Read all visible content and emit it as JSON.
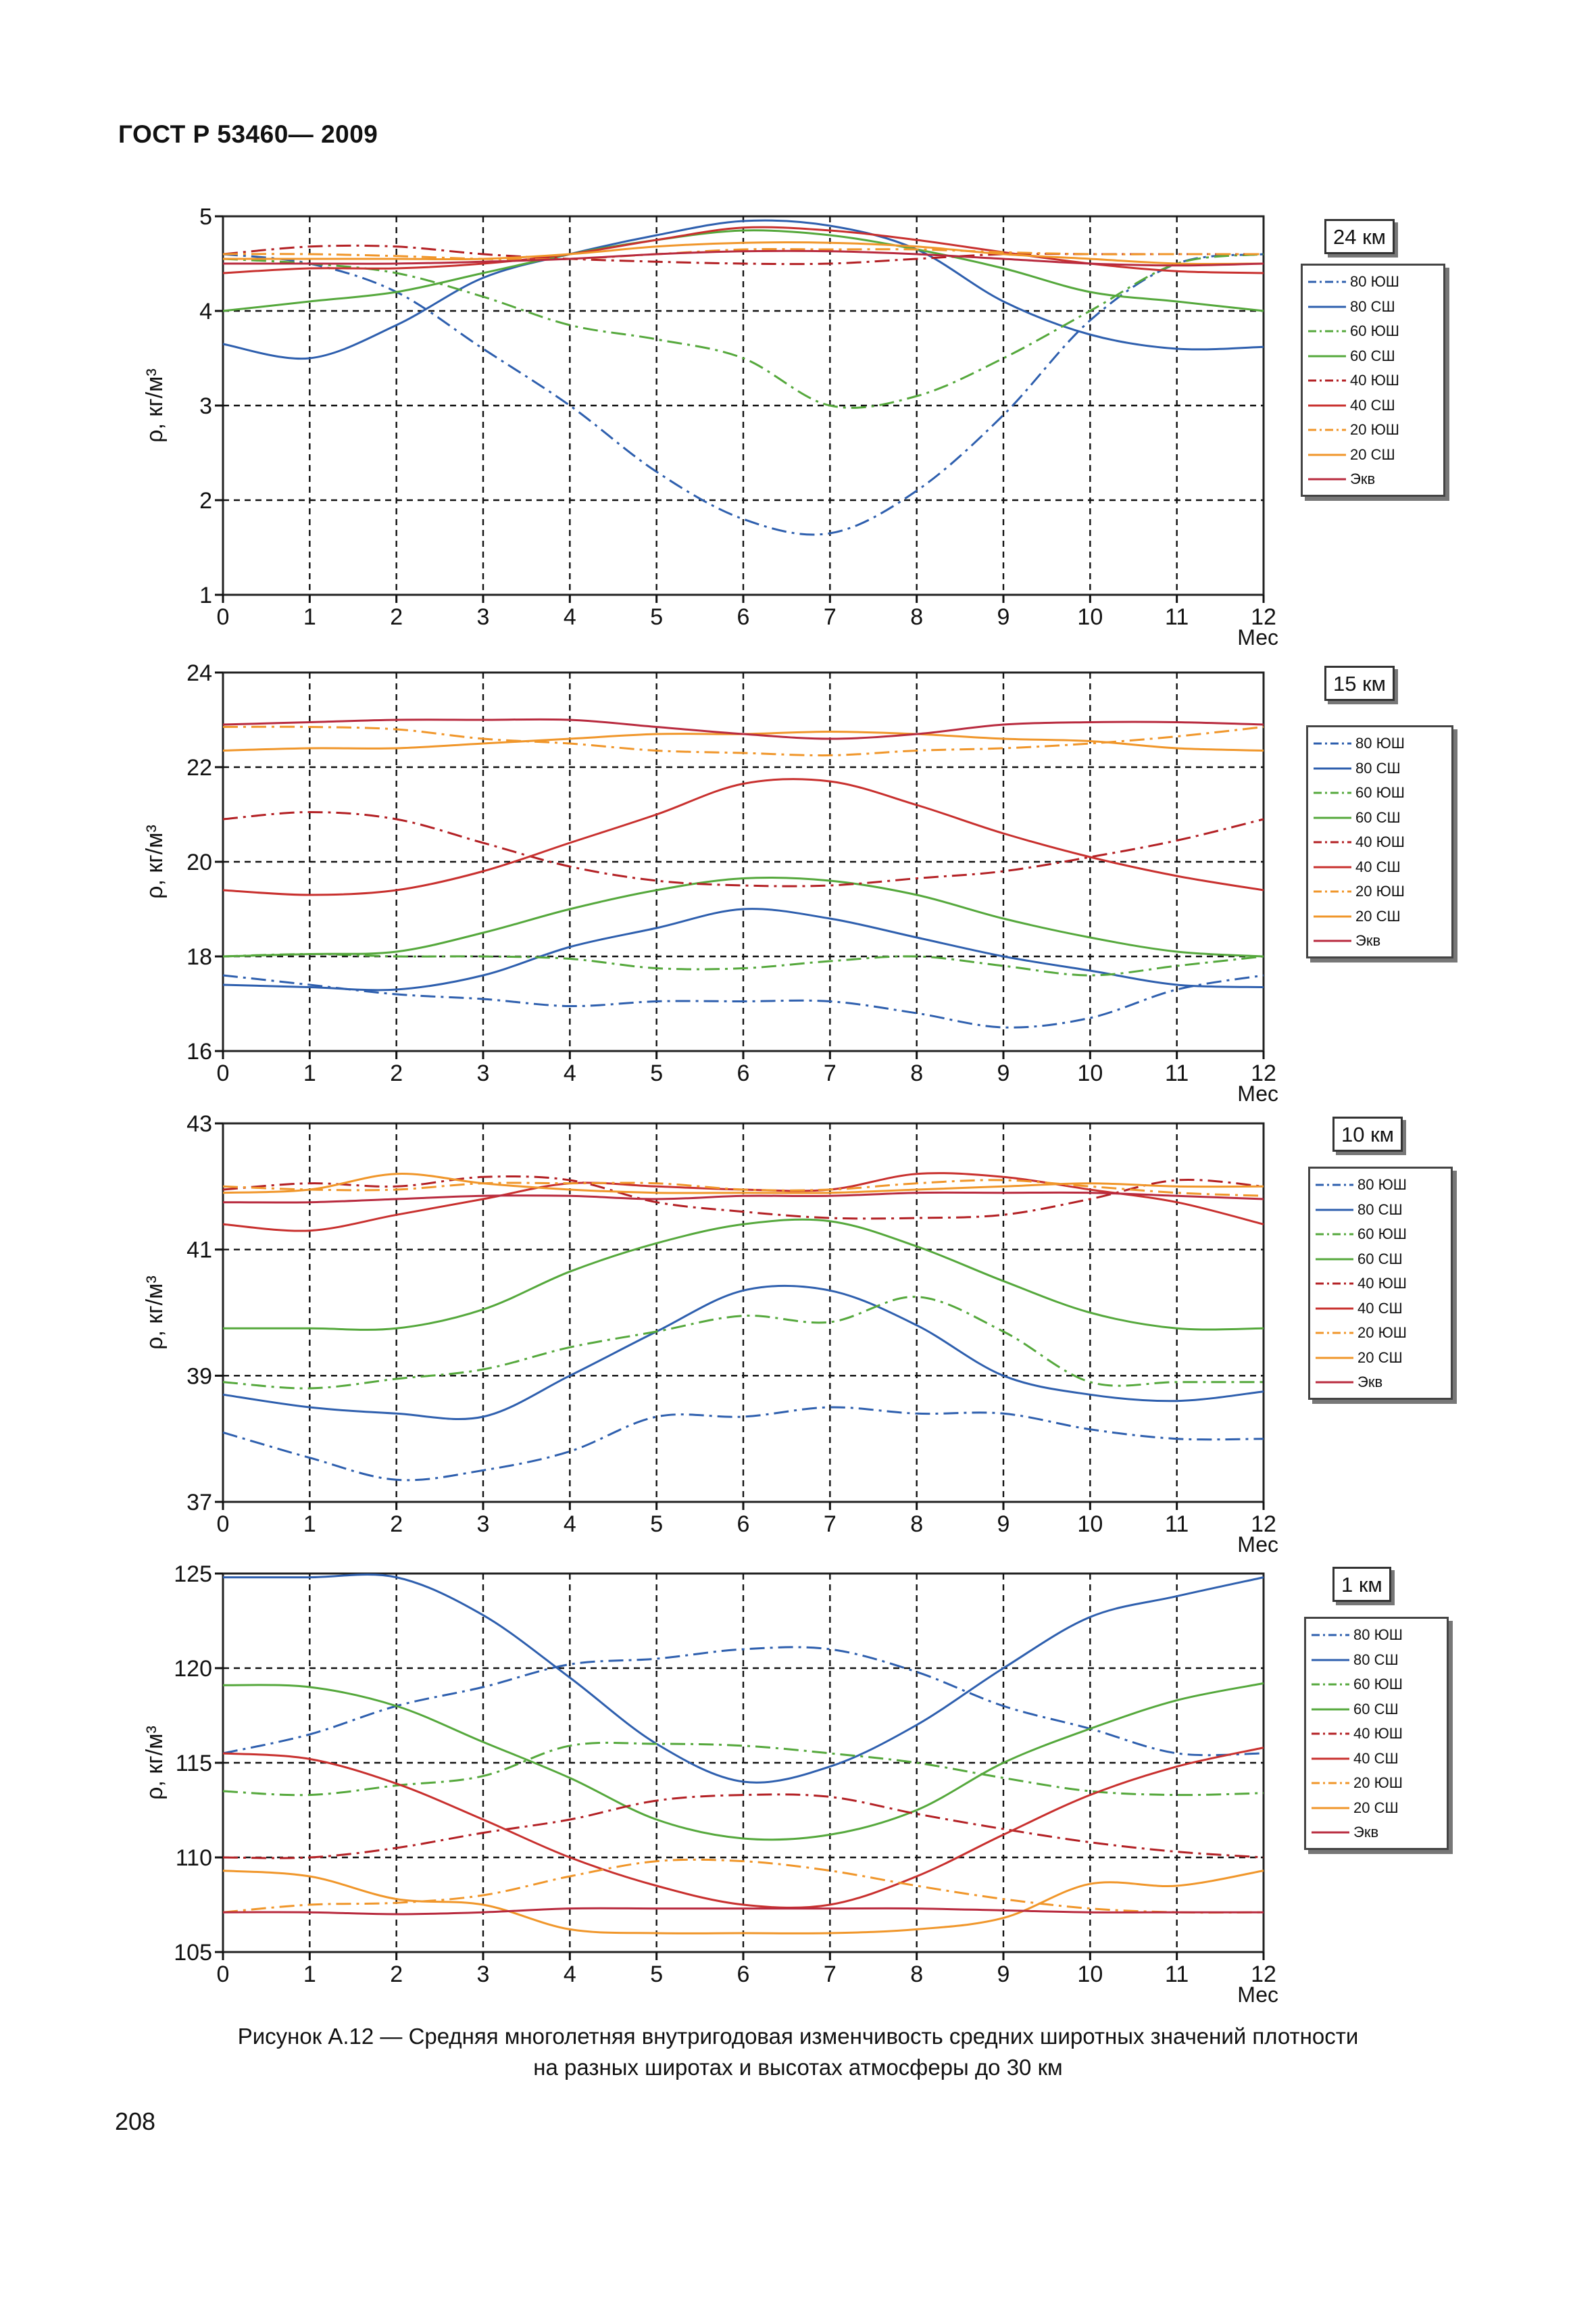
{
  "header": "ГОСТ Р 53460— 2009",
  "caption_line1": "Рисунок  А.12  —  Средняя многолетняя внутригодовая изменчивость средних широтных значений плотности",
  "caption_line2": "на разных широтах и высотах атмосферы до 30 км",
  "page_number": "208",
  "legend_labels": [
    "80 ЮШ",
    "80 СШ",
    "60 ЮШ",
    "60 СШ",
    "40 ЮШ",
    "40 СШ",
    "20 ЮШ",
    "20 СШ",
    "Экв"
  ],
  "series_styles": [
    {
      "color": "#2e5fae",
      "dash": "dashdot"
    },
    {
      "color": "#2e5fae",
      "dash": "solid"
    },
    {
      "color": "#55a83c",
      "dash": "dashdot"
    },
    {
      "color": "#55a83c",
      "dash": "solid"
    },
    {
      "color": "#b32024",
      "dash": "dashdot"
    },
    {
      "color": "#c8302e",
      "dash": "solid"
    },
    {
      "color": "#f0962a",
      "dash": "dashdot"
    },
    {
      "color": "#f0962a",
      "dash": "solid"
    },
    {
      "color": "#b82a3e",
      "dash": "solid"
    }
  ],
  "chart_data": [
    {
      "type": "line",
      "title": "24 км",
      "ylabel": "ρ, кг/м³",
      "xlabel": "Мес",
      "xlim": [
        0,
        12
      ],
      "ylim": [
        1,
        5
      ],
      "yticks": [
        1,
        2,
        3,
        4,
        5
      ],
      "grid": true,
      "legend": "right",
      "x": [
        0,
        1,
        2,
        3,
        4,
        5,
        6,
        7,
        8,
        9,
        10,
        11,
        12
      ],
      "series": [
        {
          "name": "80 ЮШ",
          "values": [
            4.6,
            4.5,
            4.2,
            3.6,
            3.0,
            2.3,
            1.8,
            1.65,
            2.1,
            2.9,
            3.9,
            4.5,
            4.6
          ]
        },
        {
          "name": "80 СШ",
          "values": [
            3.65,
            3.5,
            3.85,
            4.35,
            4.6,
            4.8,
            4.95,
            4.9,
            4.65,
            4.1,
            3.75,
            3.6,
            3.62
          ]
        },
        {
          "name": "60 ЮШ",
          "values": [
            4.55,
            4.5,
            4.4,
            4.15,
            3.85,
            3.7,
            3.5,
            3.0,
            3.1,
            3.5,
            4.0,
            4.5,
            4.6
          ]
        },
        {
          "name": "60 СШ",
          "values": [
            4.0,
            4.1,
            4.2,
            4.4,
            4.6,
            4.75,
            4.85,
            4.8,
            4.65,
            4.45,
            4.2,
            4.1,
            4.0
          ]
        },
        {
          "name": "40 ЮШ",
          "values": [
            4.6,
            4.68,
            4.68,
            4.6,
            4.55,
            4.52,
            4.5,
            4.5,
            4.55,
            4.6,
            4.6,
            4.6,
            4.6
          ]
        },
        {
          "name": "40 СШ",
          "values": [
            4.4,
            4.45,
            4.45,
            4.5,
            4.6,
            4.75,
            4.88,
            4.85,
            4.75,
            4.62,
            4.5,
            4.42,
            4.4
          ]
        },
        {
          "name": "20 ЮШ",
          "values": [
            4.6,
            4.6,
            4.58,
            4.55,
            4.55,
            4.6,
            4.65,
            4.65,
            4.65,
            4.62,
            4.6,
            4.6,
            4.6
          ]
        },
        {
          "name": "20 СШ",
          "values": [
            4.55,
            4.55,
            4.55,
            4.55,
            4.6,
            4.68,
            4.72,
            4.72,
            4.68,
            4.6,
            4.55,
            4.5,
            4.5
          ]
        },
        {
          "name": "Экв",
          "values": [
            4.5,
            4.5,
            4.5,
            4.52,
            4.55,
            4.6,
            4.63,
            4.63,
            4.6,
            4.55,
            4.5,
            4.48,
            4.5
          ]
        }
      ]
    },
    {
      "type": "line",
      "title": "15 км",
      "ylabel": "ρ, кг/м³",
      "xlabel": "Мес",
      "xlim": [
        0,
        12
      ],
      "ylim": [
        16,
        24
      ],
      "yticks": [
        16,
        18,
        20,
        22,
        24
      ],
      "grid": true,
      "legend": "right",
      "x": [
        0,
        1,
        2,
        3,
        4,
        5,
        6,
        7,
        8,
        9,
        10,
        11,
        12
      ],
      "series": [
        {
          "name": "80 ЮШ",
          "values": [
            17.6,
            17.4,
            17.2,
            17.1,
            16.95,
            17.05,
            17.05,
            17.05,
            16.8,
            16.5,
            16.7,
            17.3,
            17.6
          ]
        },
        {
          "name": "80 СШ",
          "values": [
            17.4,
            17.35,
            17.3,
            17.6,
            18.2,
            18.6,
            19.0,
            18.8,
            18.4,
            18.0,
            17.7,
            17.4,
            17.35
          ]
        },
        {
          "name": "60 ЮШ",
          "values": [
            18.0,
            18.05,
            18.0,
            18.0,
            17.95,
            17.75,
            17.75,
            17.9,
            18.0,
            17.8,
            17.6,
            17.8,
            18.0
          ]
        },
        {
          "name": "60 СШ",
          "values": [
            18.0,
            18.05,
            18.1,
            18.5,
            19.0,
            19.4,
            19.65,
            19.6,
            19.3,
            18.8,
            18.4,
            18.1,
            18.0
          ]
        },
        {
          "name": "40 ЮШ",
          "values": [
            20.9,
            21.05,
            20.9,
            20.4,
            19.9,
            19.6,
            19.5,
            19.5,
            19.65,
            19.8,
            20.1,
            20.45,
            20.9
          ]
        },
        {
          "name": "40 СШ",
          "values": [
            19.4,
            19.3,
            19.4,
            19.8,
            20.4,
            21.0,
            21.65,
            21.7,
            21.2,
            20.6,
            20.1,
            19.7,
            19.4
          ]
        },
        {
          "name": "20 ЮШ",
          "values": [
            22.85,
            22.85,
            22.8,
            22.6,
            22.5,
            22.35,
            22.3,
            22.25,
            22.35,
            22.4,
            22.5,
            22.65,
            22.85
          ]
        },
        {
          "name": "20 СШ",
          "values": [
            22.35,
            22.4,
            22.4,
            22.5,
            22.6,
            22.7,
            22.7,
            22.75,
            22.7,
            22.6,
            22.55,
            22.4,
            22.35
          ]
        },
        {
          "name": "Экв",
          "values": [
            22.9,
            22.95,
            23.0,
            23.0,
            23.0,
            22.85,
            22.7,
            22.6,
            22.7,
            22.9,
            22.95,
            22.95,
            22.9
          ]
        }
      ]
    },
    {
      "type": "line",
      "title": "10 км",
      "ylabel": "ρ, кг/м³",
      "xlabel": "Мес",
      "xlim": [
        0,
        12
      ],
      "ylim": [
        37,
        43
      ],
      "yticks": [
        37,
        39,
        41,
        43
      ],
      "grid": true,
      "legend": "right",
      "x": [
        0,
        1,
        2,
        3,
        4,
        5,
        6,
        7,
        8,
        9,
        10,
        11,
        12
      ],
      "series": [
        {
          "name": "80 ЮШ",
          "values": [
            38.1,
            37.7,
            37.35,
            37.5,
            37.8,
            38.35,
            38.35,
            38.5,
            38.4,
            38.4,
            38.15,
            38.0,
            38.0
          ]
        },
        {
          "name": "80 СШ",
          "values": [
            38.7,
            38.5,
            38.4,
            38.35,
            39.0,
            39.7,
            40.35,
            40.35,
            39.8,
            39.0,
            38.7,
            38.6,
            38.75
          ]
        },
        {
          "name": "60 ЮШ",
          "values": [
            38.9,
            38.8,
            38.95,
            39.1,
            39.45,
            39.7,
            39.95,
            39.85,
            40.25,
            39.7,
            38.9,
            38.9,
            38.9
          ]
        },
        {
          "name": "60 СШ",
          "values": [
            39.75,
            39.75,
            39.75,
            40.05,
            40.65,
            41.1,
            41.4,
            41.45,
            41.05,
            40.5,
            40.0,
            39.75,
            39.75
          ]
        },
        {
          "name": "40 ЮШ",
          "values": [
            41.95,
            42.05,
            42.0,
            42.15,
            42.1,
            41.75,
            41.6,
            41.5,
            41.5,
            41.55,
            41.8,
            42.1,
            42.0
          ]
        },
        {
          "name": "40 СШ",
          "values": [
            41.4,
            41.3,
            41.55,
            41.8,
            42.05,
            42.0,
            41.95,
            41.95,
            42.2,
            42.15,
            41.95,
            41.75,
            41.4
          ]
        },
        {
          "name": "20 ЮШ",
          "values": [
            42.0,
            41.95,
            41.95,
            42.05,
            42.05,
            42.05,
            41.95,
            41.95,
            42.05,
            42.1,
            42.0,
            41.9,
            41.85
          ]
        },
        {
          "name": "20 СШ",
          "values": [
            41.9,
            41.95,
            42.2,
            42.05,
            41.95,
            41.9,
            41.9,
            41.9,
            41.95,
            42.0,
            42.05,
            42.0,
            42.0
          ]
        },
        {
          "name": "Экв",
          "values": [
            41.75,
            41.75,
            41.8,
            41.85,
            41.85,
            41.8,
            41.85,
            41.85,
            41.9,
            41.9,
            41.9,
            41.85,
            41.8
          ]
        }
      ]
    },
    {
      "type": "line",
      "title": "1 км",
      "ylabel": "ρ, кг/м³",
      "xlabel": "Мес",
      "xlim": [
        0,
        12
      ],
      "ylim": [
        105,
        125
      ],
      "yticks": [
        105,
        110,
        115,
        120,
        125
      ],
      "grid": true,
      "legend": "right",
      "x": [
        0,
        1,
        2,
        3,
        4,
        5,
        6,
        7,
        8,
        9,
        10,
        11,
        12
      ],
      "series": [
        {
          "name": "80 ЮШ",
          "values": [
            115.5,
            116.5,
            118.0,
            119.0,
            120.2,
            120.5,
            121.0,
            121.0,
            119.8,
            118.0,
            116.8,
            115.5,
            115.5
          ]
        },
        {
          "name": "80 СШ",
          "values": [
            124.8,
            124.8,
            124.8,
            122.8,
            119.5,
            116.0,
            114.0,
            114.8,
            117.0,
            120.0,
            122.7,
            123.8,
            124.8
          ]
        },
        {
          "name": "60 ЮШ",
          "values": [
            113.5,
            113.3,
            113.8,
            114.3,
            115.9,
            116.0,
            115.9,
            115.5,
            115.0,
            114.2,
            113.5,
            113.3,
            113.4
          ]
        },
        {
          "name": "60 СШ",
          "values": [
            119.1,
            119.0,
            118.0,
            116.1,
            114.2,
            112.0,
            111.0,
            111.2,
            112.5,
            115.0,
            116.8,
            118.3,
            119.2
          ]
        },
        {
          "name": "40 ЮШ",
          "values": [
            110.0,
            110.0,
            110.5,
            111.3,
            112.0,
            113.0,
            113.3,
            113.2,
            112.3,
            111.5,
            110.8,
            110.3,
            110.0
          ]
        },
        {
          "name": "40 СШ",
          "values": [
            115.5,
            115.2,
            113.9,
            112.0,
            110.0,
            108.5,
            107.5,
            107.5,
            109.0,
            111.2,
            113.3,
            114.8,
            115.8
          ]
        },
        {
          "name": "20 ЮШ",
          "values": [
            107.1,
            107.5,
            107.6,
            108.0,
            109.0,
            109.8,
            109.8,
            109.3,
            108.5,
            107.8,
            107.3,
            107.1,
            107.1
          ]
        },
        {
          "name": "20 СШ",
          "values": [
            109.3,
            109.0,
            107.8,
            107.5,
            106.2,
            106.0,
            106.0,
            106.0,
            106.2,
            106.8,
            108.6,
            108.5,
            109.3
          ]
        },
        {
          "name": "Экв",
          "values": [
            107.1,
            107.1,
            107.0,
            107.1,
            107.3,
            107.3,
            107.3,
            107.3,
            107.3,
            107.2,
            107.1,
            107.1,
            107.1
          ]
        }
      ]
    }
  ]
}
